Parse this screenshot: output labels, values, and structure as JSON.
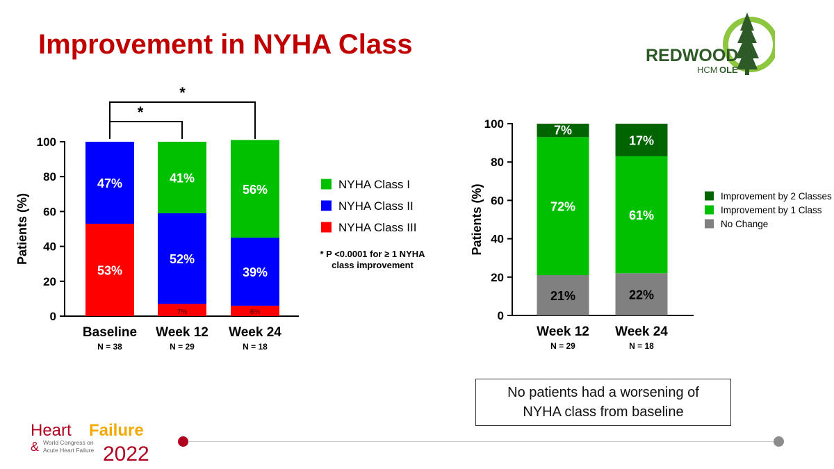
{
  "page": {
    "title": "Improvement in NYHA Class"
  },
  "logo": {
    "brand": "REDWOOD",
    "sub_light": "HCM",
    "sub_bold": "OLE",
    "brand_color": "#2d5a27",
    "ring_color": "#8dc63f"
  },
  "conference": {
    "line1_a": "Heart",
    "line1_b": "Failure",
    "ampersand": "&",
    "line2": "World Congress on",
    "line3": "Acute Heart Failure",
    "year": "2022",
    "color_red": "#b00020",
    "color_gold": "#f2a900"
  },
  "note": "* P <0.0001 for ≥ 1 NYHA class improvement",
  "callout": "No patients had a worsening of NYHA class from baseline",
  "chart_data": [
    {
      "type": "bar",
      "stacked": true,
      "title": "",
      "xlabel": "",
      "ylabel": "Patients (%)",
      "ylim": [
        0,
        100
      ],
      "yticks": [
        0,
        20,
        40,
        60,
        80,
        100
      ],
      "categories": [
        "Baseline",
        "Week 12",
        "Week 24"
      ],
      "sublabels": [
        "N = 38",
        "N = 29",
        "N = 18"
      ],
      "series": [
        {
          "name": "NYHA Class III",
          "color": "#ff0000",
          "values": [
            53,
            7,
            6
          ],
          "labels": [
            "53%",
            "7%",
            "6%"
          ]
        },
        {
          "name": "NYHA Class II",
          "color": "#0000ff",
          "values": [
            47,
            52,
            39
          ],
          "labels": [
            "47%",
            "52%",
            "39%"
          ]
        },
        {
          "name": "NYHA Class I",
          "color": "#00c000",
          "values": [
            0,
            41,
            56
          ],
          "labels": [
            "",
            "41%",
            "56%"
          ]
        }
      ],
      "legend": {
        "placement": "right",
        "order": [
          "NYHA Class I",
          "NYHA Class II",
          "NYHA Class III"
        ]
      },
      "significance": [
        {
          "from": "Baseline",
          "to": "Week 12",
          "label": "*"
        },
        {
          "from": "Baseline",
          "to": "Week 24",
          "label": "*"
        }
      ]
    },
    {
      "type": "bar",
      "stacked": true,
      "title": "",
      "xlabel": "",
      "ylabel": "Patients (%)",
      "ylim": [
        0,
        100
      ],
      "yticks": [
        0,
        20,
        40,
        60,
        80,
        100
      ],
      "categories": [
        "Week 12",
        "Week 24"
      ],
      "sublabels": [
        "N = 29",
        "N = 18"
      ],
      "series": [
        {
          "name": "No Change",
          "color": "#808080",
          "values": [
            21,
            22
          ],
          "labels": [
            "21%",
            "22%"
          ]
        },
        {
          "name": "Improvement by 1 Class",
          "color": "#00c000",
          "values": [
            72,
            61
          ],
          "labels": [
            "72%",
            "61%"
          ]
        },
        {
          "name": "Improvement by 2 Classes",
          "color": "#006400",
          "values": [
            7,
            17
          ],
          "labels": [
            "7%",
            "17%"
          ]
        }
      ],
      "legend": {
        "placement": "right",
        "order": [
          "Improvement by 2 Classes",
          "Improvement by 1 Class",
          "No Change"
        ]
      }
    }
  ]
}
